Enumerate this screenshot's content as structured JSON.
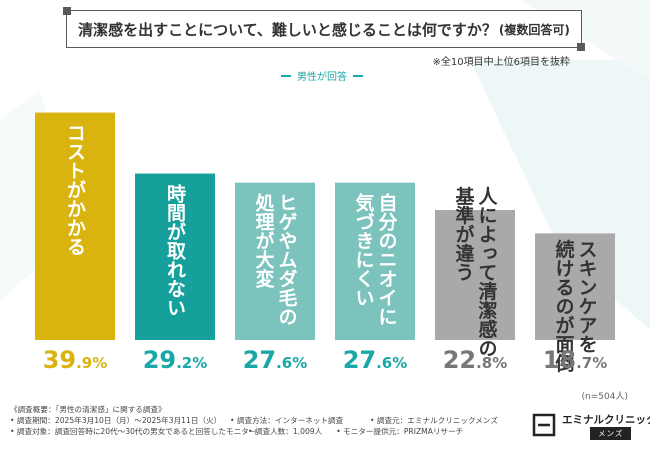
{
  "title": {
    "main": "清潔感を出すことについて、難しいと感じることは何ですか？",
    "sub": "(複数回答可)"
  },
  "note": "※全10項目中上位6項目を抜粋",
  "legend": {
    "label": "男性が回答"
  },
  "n_label": "(n=504人)",
  "colors": {
    "gold": "#d9b40f",
    "teal_dark": "#16a09b",
    "teal_light": "#7dc3bd",
    "gray": "#a9a9a9",
    "teal_text": "#1aa7a7",
    "gray_text": "#777777"
  },
  "chart_data": {
    "type": "bar",
    "title": "清潔感を出すことについて、難しいと感じることは何ですか？(複数回答可)",
    "series_name": "男性が回答",
    "categories": [
      "コストがかかる",
      "時間が取れない",
      "ヒゲやムダ毛の処理が大変",
      "自分のニオイに気づきにくい",
      "人によって清潔感の基準が違う",
      "スキンケアを続けるのが面倒"
    ],
    "bar_text": [
      [
        "コストがかかる"
      ],
      [
        "時間が取れない"
      ],
      [
        "ヒゲやムダ毛の",
        "処理が大変"
      ],
      [
        "自分のニオイに",
        "気づきにくい"
      ],
      [
        "人によって清潔感の",
        "基準が違う"
      ],
      [
        "スキンケアを",
        "続けるのが面倒"
      ]
    ],
    "values": [
      39.9,
      29.2,
      27.6,
      27.6,
      22.8,
      18.7
    ],
    "value_labels": [
      {
        "int": "39",
        "dec": ".9%"
      },
      {
        "int": "29",
        "dec": ".2%"
      },
      {
        "int": "27",
        "dec": ".6%"
      },
      {
        "int": "27",
        "dec": ".6%"
      },
      {
        "int": "22",
        "dec": ".8%"
      },
      {
        "int": "18",
        "dec": ".7%"
      }
    ],
    "ylim": [
      0,
      40
    ]
  },
  "footer": {
    "heading": "《調査概要：「男性の清潔感」に関する調査》",
    "period": "• 調査期間：2025年3月10日（月）～2025年3月11日（火）",
    "method": "• 調査方法：インターネット調査",
    "source": "• 調査元：エミナルクリニックメンズ",
    "target": "• 調査対象：調査回答時に20代～30代の男女であると回答したモニター",
    "count": "• 調査人数：1,009人",
    "provider": "• モニター提供元：PRIZMAリサーチ"
  },
  "logo": {
    "name": "エミナルクリニック",
    "badge": "メンズ"
  }
}
